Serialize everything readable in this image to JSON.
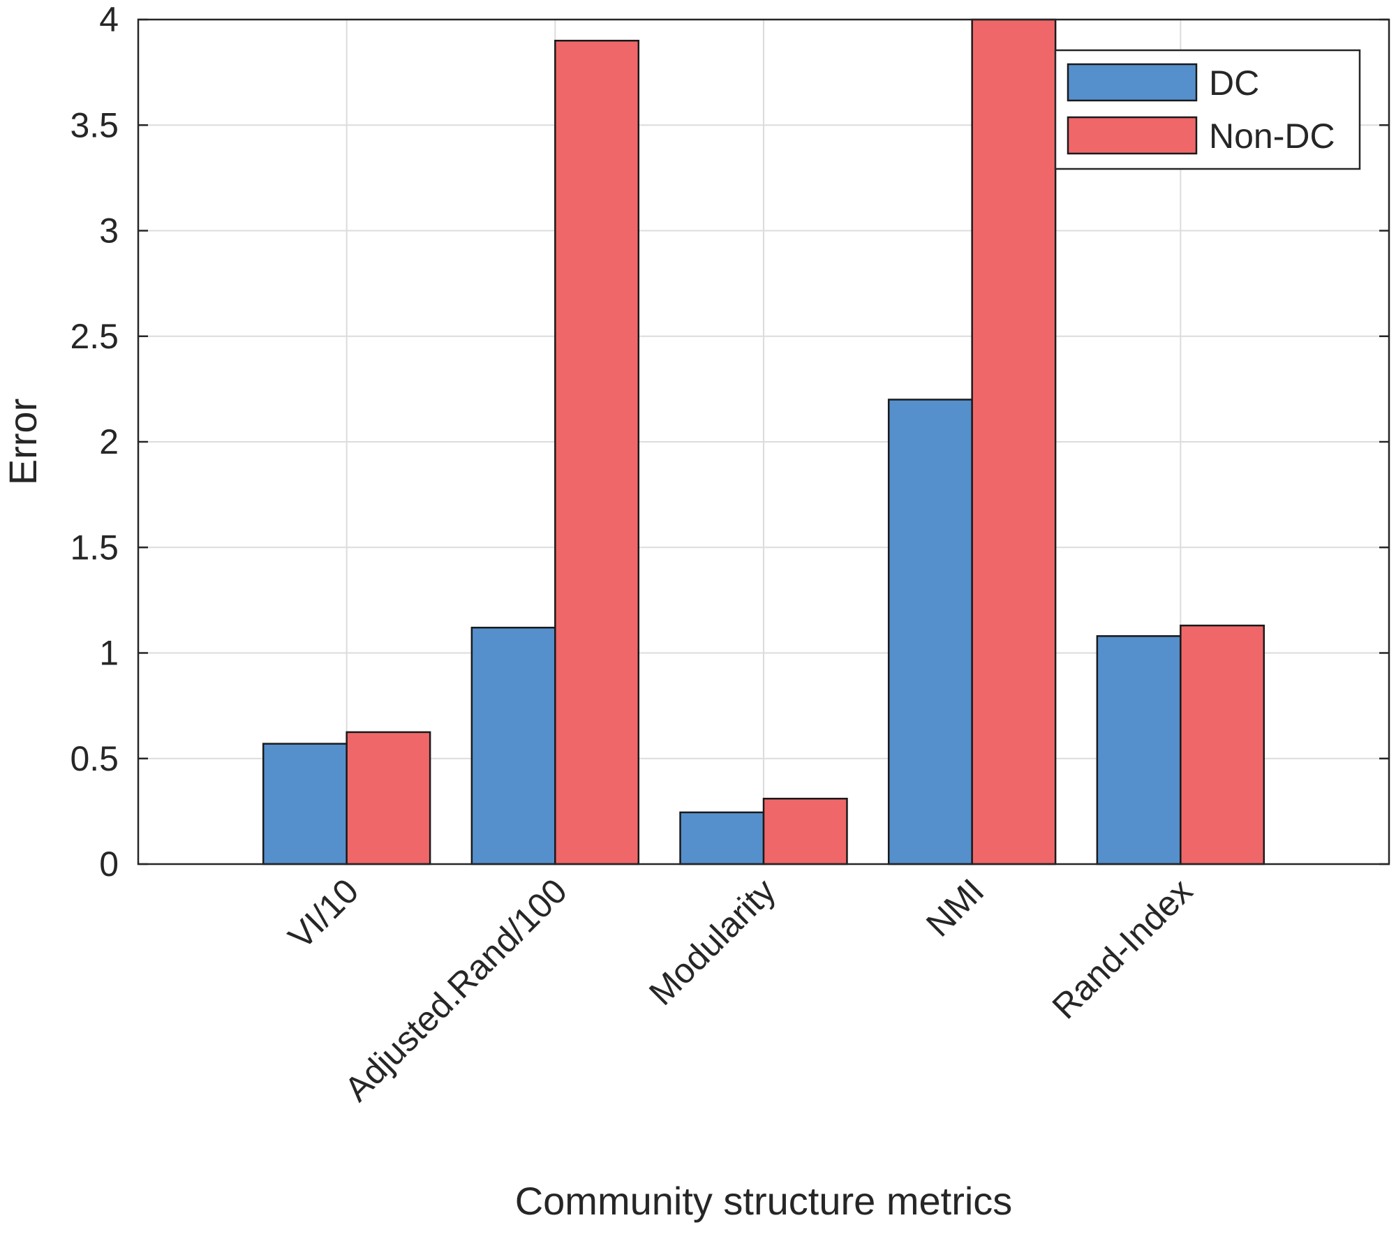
{
  "chart_data": {
    "type": "bar",
    "xlabel": "Community structure metrics",
    "ylabel": "Error",
    "categories": [
      "VI/10",
      "Adjusted.Rand/100",
      "Modularity",
      "NMI",
      "Rand-Index"
    ],
    "series": [
      {
        "name": "DC",
        "values": [
          0.57,
          1.12,
          0.245,
          2.2,
          1.08
        ],
        "color": "#5590cd"
      },
      {
        "name": "Non-DC",
        "values": [
          0.625,
          3.9,
          0.31,
          4.0,
          1.13
        ],
        "color": "#f0676a"
      }
    ],
    "ylim": [
      0,
      4
    ],
    "yticks": [
      0,
      0.5,
      1,
      1.5,
      2,
      2.5,
      3,
      3.5,
      4
    ],
    "ytick_labels": [
      "0",
      "0.5",
      "1",
      "1.5",
      "2",
      "2.5",
      "3",
      "3.5",
      "4"
    ],
    "xlim": [
      0,
      6
    ],
    "grid": true,
    "legend_position": "top-right",
    "colors": {
      "grid": "#dcdcdc",
      "axis": "#262626",
      "bar_edge": "#1a1a1a"
    }
  }
}
